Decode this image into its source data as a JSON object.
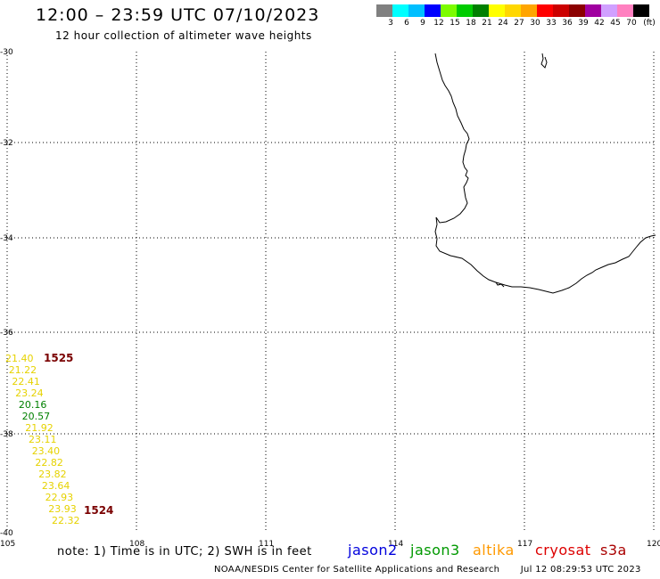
{
  "header": {
    "title": "12:00 – 23:59 UTC 07/10/2023",
    "subtitle": "12 hour collection of altimeter wave heights"
  },
  "scale": {
    "colors": [
      "#808080",
      "#00ffff",
      "#00bfff",
      "#0000ff",
      "#7cfc00",
      "#00cc00",
      "#008000",
      "#ffff00",
      "#ffd700",
      "#ffa500",
      "#ff0000",
      "#cc0000",
      "#8b0000",
      "#a000a0",
      "#d0a0ff",
      "#ff80c0",
      "#000000"
    ],
    "labels": [
      "3",
      "6",
      "9",
      "12",
      "15",
      "18",
      "21",
      "24",
      "27",
      "30",
      "33",
      "36",
      "39",
      "42",
      "45",
      "70",
      "(ft)"
    ]
  },
  "axes": {
    "lat_labels": [
      "-30",
      "-32",
      "-34",
      "-36",
      "-38",
      "-40"
    ],
    "lon_labels": [
      "105",
      "108",
      "111",
      "114",
      "117",
      "120"
    ]
  },
  "track": {
    "readings": [
      {
        "value": "21.40",
        "color": "#e6d200"
      },
      {
        "value": "21.22",
        "color": "#e6d200"
      },
      {
        "value": "22.41",
        "color": "#e6d200"
      },
      {
        "value": "23.24",
        "color": "#e6d200"
      },
      {
        "value": "20.16",
        "color": "#008000"
      },
      {
        "value": "20.57",
        "color": "#008000"
      },
      {
        "value": "21.92",
        "color": "#e6d200"
      },
      {
        "value": "23.11",
        "color": "#e6d200"
      },
      {
        "value": "23.40",
        "color": "#e6d200"
      },
      {
        "value": "22.82",
        "color": "#e6d200"
      },
      {
        "value": "23.82",
        "color": "#e6d200"
      },
      {
        "value": "23.64",
        "color": "#e6d200"
      },
      {
        "value": "22.93",
        "color": "#e6d200"
      },
      {
        "value": "23.93",
        "color": "#e6d200"
      },
      {
        "value": "22.32",
        "color": "#e6d200"
      }
    ],
    "time_start": "1525",
    "time_end": "1524"
  },
  "note": "note: 1) Time is in UTC; 2) SWH is in feet",
  "satellites": [
    {
      "name": "jason2",
      "color": "#0000dd"
    },
    {
      "name": "jason3",
      "color": "#009900"
    },
    {
      "name": "altika",
      "color": "#ff9900"
    },
    {
      "name": "cryosat",
      "color": "#dd0000"
    },
    {
      "name": "s3a",
      "color": "#aa0000"
    }
  ],
  "footer": {
    "source": "NOAA/NESDIS Center for Satellite Applications and Research",
    "date": "Jul 12 08:29:53 UTC 2023"
  }
}
